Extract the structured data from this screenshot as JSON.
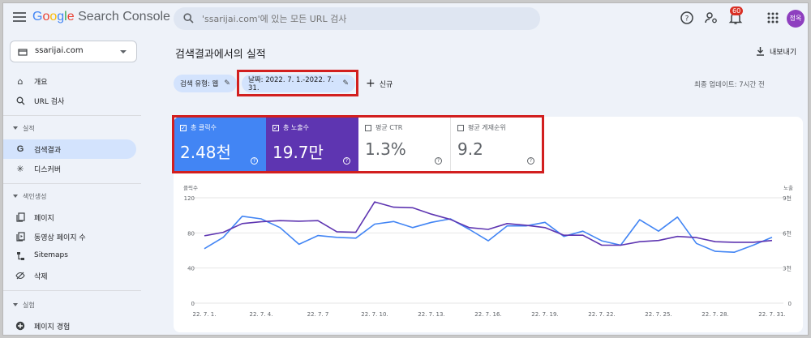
{
  "header": {
    "logo_google": "Google",
    "logo_rest": " Search Console",
    "search_placeholder": "'ssarijai.com'에 있는 모든 URL 검사",
    "notification_count": "60",
    "avatar_text": "정옥"
  },
  "sidebar": {
    "property": "ssarijai.com",
    "items_top": [
      {
        "icon": "home-icon",
        "label": "개요"
      },
      {
        "icon": "search-icon",
        "label": "URL 검사"
      }
    ],
    "section_performance": "실적",
    "items_performance": [
      {
        "icon": "google-g-icon",
        "label": "검색결과"
      },
      {
        "icon": "asterisk-icon",
        "label": "디스커버"
      }
    ],
    "section_indexing": "색인생성",
    "items_indexing": [
      {
        "icon": "pages-icon",
        "label": "페이지"
      },
      {
        "icon": "video-pages-icon",
        "label": "동영상 페이지 수"
      },
      {
        "icon": "sitemap-icon",
        "label": "Sitemaps"
      },
      {
        "icon": "eye-off-icon",
        "label": "삭제"
      }
    ],
    "section_experience": "실험",
    "items_experience": [
      {
        "icon": "plus-circle-icon",
        "label": "페이지 경험"
      }
    ]
  },
  "main": {
    "title": "검색결과에서의 실적",
    "export_label": "내보내기",
    "filter_type": "검색 유형: 웹",
    "filter_date": "날짜: 2022. 7. 1.-2022. 7. 31.",
    "new_label": "신규",
    "last_updated": "최종 업데이트: 7시간 전"
  },
  "metrics": [
    {
      "label": "총 클릭수",
      "value": "2.48천",
      "checked": true,
      "color": "#4285f4"
    },
    {
      "label": "총 노출수",
      "value": "19.7만",
      "checked": true,
      "color": "#5e35b1"
    },
    {
      "label": "평균 CTR",
      "value": "1.3%",
      "checked": false
    },
    {
      "label": "평균 게재순위",
      "value": "9.2",
      "checked": false
    }
  ],
  "colors": {
    "clicks": "#4285f4",
    "impressions": "#5e35b1",
    "highlight": "#d21f1f"
  },
  "chart_data": {
    "type": "line",
    "left_axis_label": "클릭수",
    "right_axis_label": "노출",
    "left_ticks": [
      "120",
      "80",
      "40",
      "0"
    ],
    "left_tick_values": [
      120,
      80,
      40,
      0
    ],
    "right_ticks": [
      "9천",
      "6천",
      "3천",
      "0"
    ],
    "right_tick_values": [
      9000,
      6000,
      3000,
      0
    ],
    "ylim_left": [
      0,
      120
    ],
    "ylim_right": [
      0,
      9000
    ],
    "x_labels": [
      "22. 7. 1.",
      "22. 7. 4.",
      "22. 7. 7",
      "22. 7. 10.",
      "22. 7. 13.",
      "22. 7. 16.",
      "22. 7. 19.",
      "22. 7. 22.",
      "22. 7. 25.",
      "22. 7. 28.",
      "22. 7. 31."
    ],
    "series": [
      {
        "name": "클릭수",
        "axis": "left",
        "values": [
          62,
          75,
          99,
          96,
          86,
          67,
          77,
          75,
          74,
          90,
          93,
          86,
          92,
          96,
          84,
          71,
          88,
          88,
          92,
          76,
          82,
          71,
          66,
          95,
          82,
          98,
          68,
          59,
          58,
          66,
          75
        ]
      },
      {
        "name": "노출",
        "axis": "right",
        "values": [
          5750,
          6050,
          6800,
          6950,
          7050,
          7000,
          7050,
          6100,
          6050,
          8650,
          8200,
          8150,
          7600,
          7150,
          6450,
          6300,
          6800,
          6650,
          6450,
          5800,
          5800,
          4950,
          4950,
          5250,
          5350,
          5700,
          5600,
          5250,
          5200,
          5200,
          5350
        ]
      }
    ],
    "grid": true
  }
}
